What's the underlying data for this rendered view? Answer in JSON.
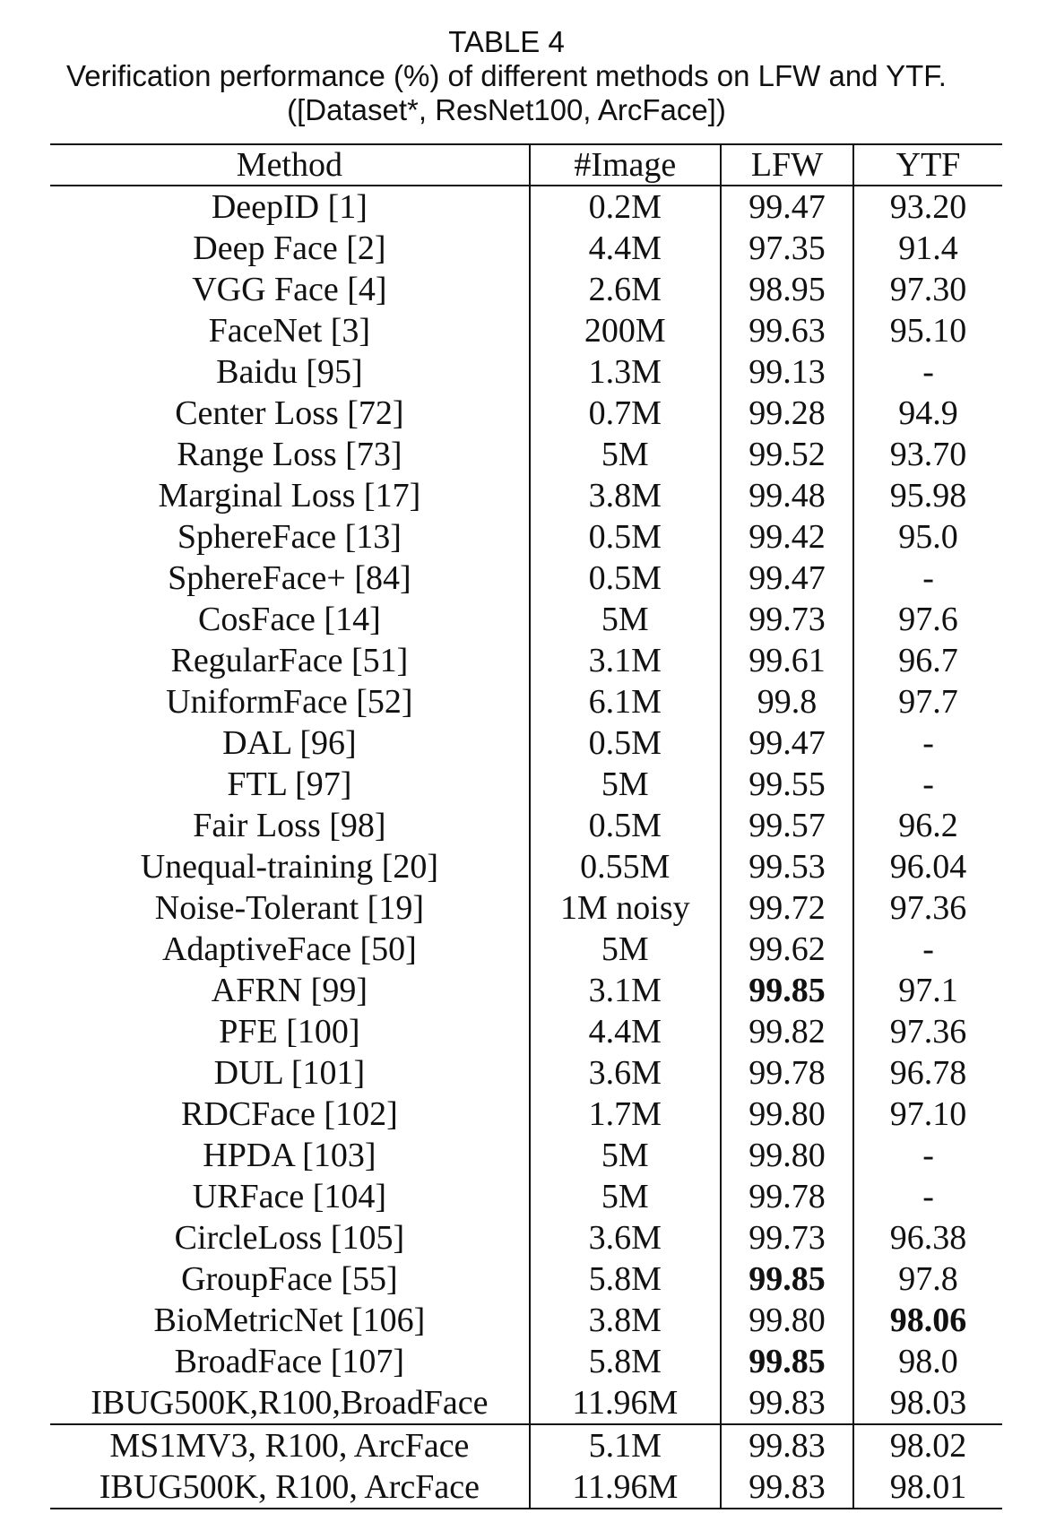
{
  "caption": {
    "label": "TABLE 4",
    "title": "Verification performance (%) of different methods on LFW and YTF.",
    "subtitle": "([Dataset*, ResNet100, ArcFace])"
  },
  "table": {
    "headers": [
      "Method",
      "#Image",
      "LFW",
      "YTF"
    ],
    "rows": [
      [
        "DeepID [1]",
        "0.2M",
        "99.47",
        "93.20"
      ],
      [
        "Deep Face [2]",
        "4.4M",
        "97.35",
        "91.4"
      ],
      [
        "VGG Face [4]",
        "2.6M",
        "98.95",
        "97.30"
      ],
      [
        "FaceNet [3]",
        "200M",
        "99.63",
        "95.10"
      ],
      [
        "Baidu [95]",
        "1.3M",
        "99.13",
        "-"
      ],
      [
        "Center Loss [72]",
        "0.7M",
        "99.28",
        "94.9"
      ],
      [
        "Range Loss [73]",
        "5M",
        "99.52",
        "93.70"
      ],
      [
        "Marginal Loss [17]",
        "3.8M",
        "99.48",
        "95.98"
      ],
      [
        "SphereFace [13]",
        "0.5M",
        "99.42",
        "95.0"
      ],
      [
        "SphereFace+ [84]",
        "0.5M",
        "99.47",
        "-"
      ],
      [
        "CosFace [14]",
        "5M",
        "99.73",
        "97.6"
      ],
      [
        "RegularFace [51]",
        "3.1M",
        "99.61",
        "96.7"
      ],
      [
        "UniformFace [52]",
        "6.1M",
        "99.8",
        "97.7"
      ],
      [
        "DAL [96]",
        "0.5M",
        "99.47",
        "-"
      ],
      [
        "FTL [97]",
        "5M",
        "99.55",
        "-"
      ],
      [
        "Fair Loss [98]",
        "0.5M",
        "99.57",
        "96.2"
      ],
      [
        "Unequal-training [20]",
        "0.55M",
        "99.53",
        "96.04"
      ],
      [
        "Noise-Tolerant [19]",
        "1M noisy",
        "99.72",
        "97.36"
      ],
      [
        "AdaptiveFace [50]",
        "5M",
        "99.62",
        "-"
      ],
      [
        "AFRN [99]",
        "3.1M",
        "99.85",
        "97.1"
      ],
      [
        "PFE [100]",
        "4.4M",
        "99.82",
        "97.36"
      ],
      [
        "DUL [101]",
        "3.6M",
        "99.78",
        "96.78"
      ],
      [
        "RDCFace [102]",
        "1.7M",
        "99.80",
        "97.10"
      ],
      [
        "HPDA [103]",
        "5M",
        "99.80",
        "-"
      ],
      [
        "URFace [104]",
        "5M",
        "99.78",
        "-"
      ],
      [
        "CircleLoss [105]",
        "3.6M",
        "99.73",
        "96.38"
      ],
      [
        "GroupFace [55]",
        "5.8M",
        "99.85",
        "97.8"
      ],
      [
        "BioMetricNet [106]",
        "3.8M",
        "99.80",
        "98.06"
      ],
      [
        "BroadFace [107]",
        "5.8M",
        "99.85",
        "98.0"
      ],
      [
        "IBUG500K,R100,BroadFace",
        "11.96M",
        "99.83",
        "98.03"
      ],
      [
        "MS1MV3, R100, ArcFace",
        "5.1M",
        "99.83",
        "98.02"
      ],
      [
        "IBUG500K, R100, ArcFace",
        "11.96M",
        "99.83",
        "98.01"
      ]
    ],
    "bold_cells": [
      [
        19,
        2
      ],
      [
        26,
        2
      ],
      [
        27,
        3
      ],
      [
        28,
        2
      ]
    ],
    "separator_before_row": 30
  }
}
